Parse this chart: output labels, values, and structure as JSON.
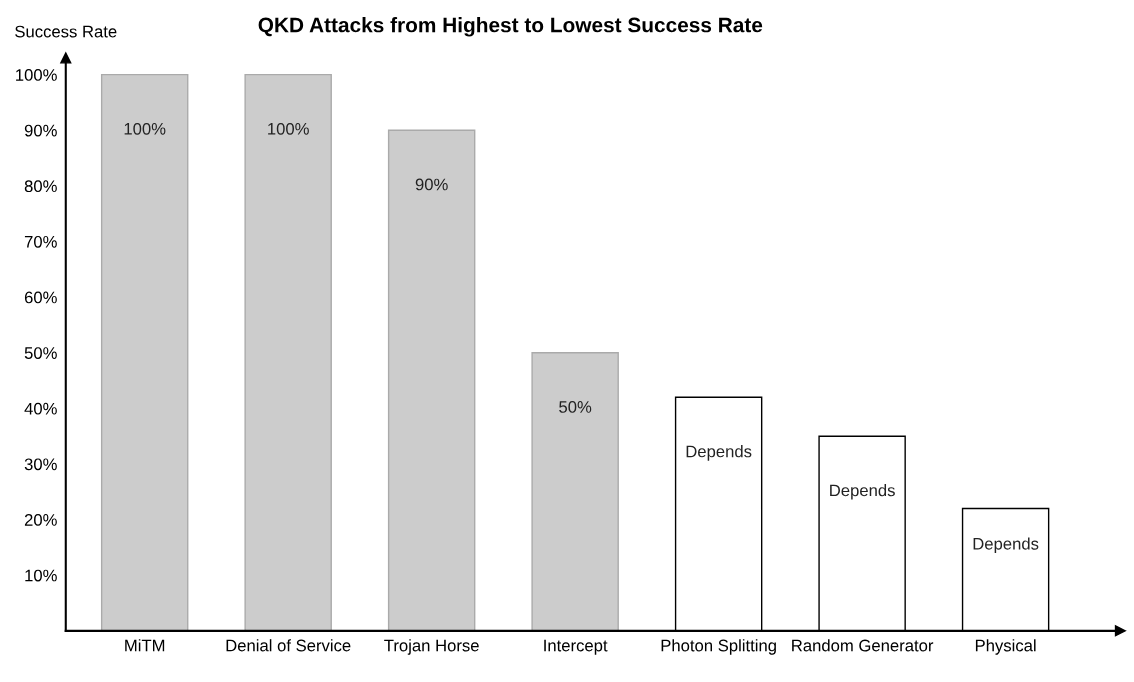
{
  "chart_data": {
    "type": "bar",
    "title": "QKD Attacks from Highest to Lowest Success Rate",
    "ylabel": "Success Rate",
    "categories": [
      "MiTM",
      "Denial of Service",
      "Trojan Horse",
      "Intercept",
      "Photon Splitting",
      "Random Generator",
      "Physical"
    ],
    "values": [
      100,
      100,
      90,
      50,
      42,
      35,
      22
    ],
    "colors": [
      "#cccccc",
      "#cccccc",
      "#cccccc",
      "#cccccc",
      "#ffffff",
      "#ffffff",
      "#ffffff"
    ],
    "value_labels": [
      "100%",
      "100%",
      "90%",
      "50%",
      "Depends",
      "Depends",
      "Depends"
    ],
    "ylim": [
      0,
      103
    ],
    "yticks": [
      {
        "value": 10,
        "label": "10%"
      },
      {
        "value": 20,
        "label": "20%"
      },
      {
        "value": 30,
        "label": "30%"
      },
      {
        "value": 40,
        "label": "40%"
      },
      {
        "value": 50,
        "label": "50%"
      },
      {
        "value": 60,
        "label": "60%"
      },
      {
        "value": 70,
        "label": "70%"
      },
      {
        "value": 80,
        "label": "80%"
      },
      {
        "value": 90,
        "label": "90%"
      },
      {
        "value": 100,
        "label": "100%"
      }
    ],
    "grid": false
  }
}
